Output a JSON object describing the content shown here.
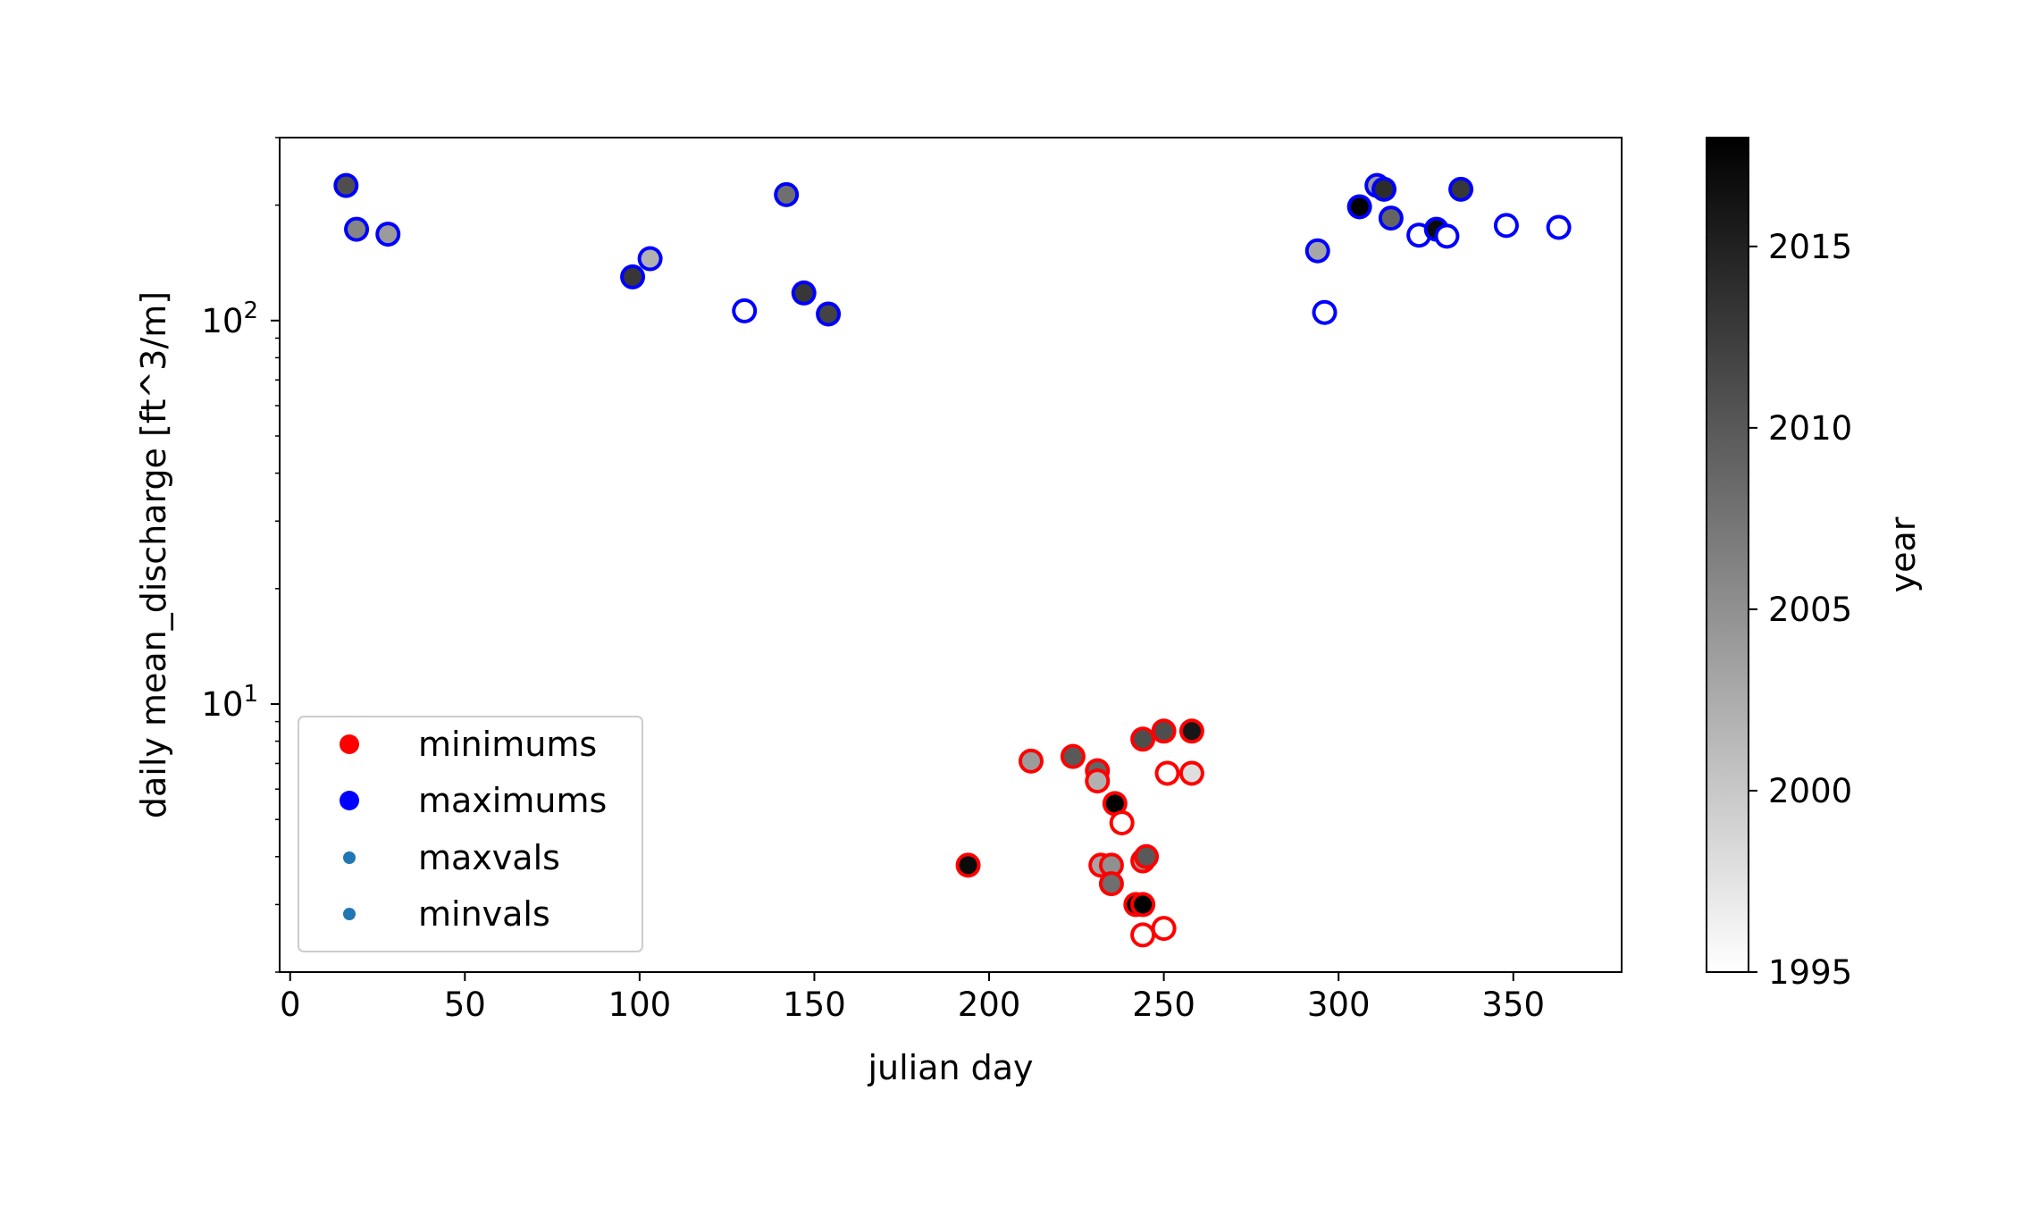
{
  "chart_data": {
    "type": "scatter",
    "title": "",
    "xlabel": "julian day",
    "ylabel": "daily mean_discharge [ft^3/m]",
    "xlim": [
      -3,
      381
    ],
    "xticks": [
      0,
      50,
      100,
      150,
      200,
      250,
      300,
      350
    ],
    "ylim": [
      2.0,
      300
    ],
    "yscale": "log",
    "yticks": [
      {
        "value": 10,
        "base": "10",
        "exp": "1"
      },
      {
        "value": 100,
        "base": "10",
        "exp": "2"
      }
    ],
    "grid": false,
    "legend": {
      "location": "lower-left",
      "entries": [
        {
          "label": "minimums",
          "color": "#ff0000",
          "marker": "large"
        },
        {
          "label": "maximums",
          "color": "#0000ff",
          "marker": "large"
        },
        {
          "label": "maxvals",
          "color": "#1f77b4",
          "marker": "small"
        },
        {
          "label": "minvals",
          "color": "#1f77b4",
          "marker": "small"
        }
      ]
    },
    "colorbar": {
      "label": "year",
      "range": [
        1995,
        2018
      ],
      "ticks": [
        1995,
        2000,
        2005,
        2010,
        2015
      ],
      "colormap": "Greys"
    },
    "series": [
      {
        "name": "maximums",
        "edge_color": "#0000ff",
        "points": [
          {
            "x": 16,
            "y": 225,
            "year": 2011
          },
          {
            "x": 19,
            "y": 173,
            "year": 2006
          },
          {
            "x": 28,
            "y": 168,
            "year": 2004
          },
          {
            "x": 98,
            "y": 130,
            "year": 2013
          },
          {
            "x": 103,
            "y": 145,
            "year": 2002
          },
          {
            "x": 130,
            "y": 106,
            "year": 1995
          },
          {
            "x": 142,
            "y": 213,
            "year": 2008
          },
          {
            "x": 147,
            "y": 118,
            "year": 2013
          },
          {
            "x": 154,
            "y": 104,
            "year": 2012
          },
          {
            "x": 294,
            "y": 152,
            "year": 2003
          },
          {
            "x": 296,
            "y": 105,
            "year": 1995
          },
          {
            "x": 306,
            "y": 198,
            "year": 2018
          },
          {
            "x": 311,
            "y": 225,
            "year": 2004
          },
          {
            "x": 313,
            "y": 220,
            "year": 2014
          },
          {
            "x": 315,
            "y": 185,
            "year": 2009
          },
          {
            "x": 323,
            "y": 167,
            "year": 1995
          },
          {
            "x": 328,
            "y": 173,
            "year": 2017
          },
          {
            "x": 331,
            "y": 166,
            "year": 1995
          },
          {
            "x": 335,
            "y": 220,
            "year": 2013
          },
          {
            "x": 348,
            "y": 177,
            "year": 1995
          },
          {
            "x": 363,
            "y": 175,
            "year": 1995
          }
        ]
      },
      {
        "name": "minimums",
        "edge_color": "#ff0000",
        "points": [
          {
            "x": 194,
            "y": 3.8,
            "year": 2017
          },
          {
            "x": 212,
            "y": 7.1,
            "year": 2004
          },
          {
            "x": 224,
            "y": 7.3,
            "year": 2010
          },
          {
            "x": 231,
            "y": 6.7,
            "year": 2009
          },
          {
            "x": 231,
            "y": 6.3,
            "year": 2002
          },
          {
            "x": 232,
            "y": 3.8,
            "year": 2003
          },
          {
            "x": 235,
            "y": 3.8,
            "year": 2005
          },
          {
            "x": 235,
            "y": 3.4,
            "year": 2008
          },
          {
            "x": 236,
            "y": 5.5,
            "year": 2018
          },
          {
            "x": 238,
            "y": 4.9,
            "year": 1995
          },
          {
            "x": 242,
            "y": 3.0,
            "year": 2017
          },
          {
            "x": 244,
            "y": 3.0,
            "year": 2018
          },
          {
            "x": 244,
            "y": 2.5,
            "year": 1995
          },
          {
            "x": 244,
            "y": 3.9,
            "year": 2004
          },
          {
            "x": 245,
            "y": 4.0,
            "year": 2010
          },
          {
            "x": 244,
            "y": 8.1,
            "year": 2011
          },
          {
            "x": 250,
            "y": 8.5,
            "year": 2011
          },
          {
            "x": 251,
            "y": 6.6,
            "year": 1995
          },
          {
            "x": 250,
            "y": 2.6,
            "year": 1995
          },
          {
            "x": 258,
            "y": 8.5,
            "year": 2016
          },
          {
            "x": 258,
            "y": 6.6,
            "year": 1998
          }
        ]
      }
    ]
  }
}
